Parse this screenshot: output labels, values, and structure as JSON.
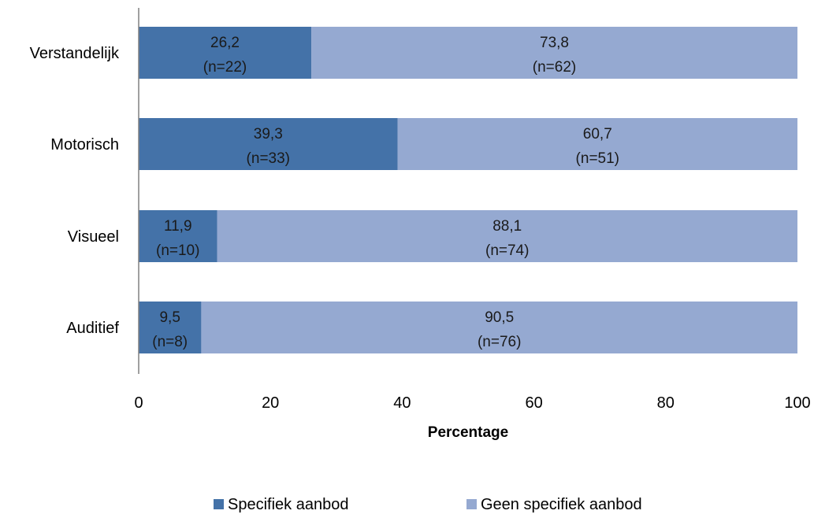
{
  "colors": {
    "specifiek": "#4472a8",
    "geen": "#95a9d1",
    "axis": "#808080"
  },
  "chart_data": {
    "type": "bar",
    "orientation": "horizontal",
    "stacked": true,
    "categories": [
      "Verstandelijk",
      "Motorisch",
      "Visueel",
      "Auditief"
    ],
    "series": [
      {
        "name": "Specifiek aanbod",
        "values": [
          26.2,
          39.3,
          11.9,
          9.5
        ],
        "labels": [
          "26,2",
          "39,3",
          "11,9",
          "9,5"
        ],
        "n_labels": [
          "(n=22)",
          "(n=33)",
          "(n=10)",
          "(n=8)"
        ]
      },
      {
        "name": "Geen specifiek aanbod",
        "values": [
          73.8,
          60.7,
          88.1,
          90.5
        ],
        "labels": [
          "73,8",
          "60,7",
          "88,1",
          "90,5"
        ],
        "n_labels": [
          "(n=62)",
          "(n=51)",
          "(n=74)",
          "(n=76)"
        ]
      }
    ],
    "xlabel": "Percentage",
    "xlim": [
      0,
      100
    ],
    "xticks": [
      "0",
      "20",
      "40",
      "60",
      "80",
      "100"
    ],
    "grid": false,
    "legend_position": "bottom"
  }
}
